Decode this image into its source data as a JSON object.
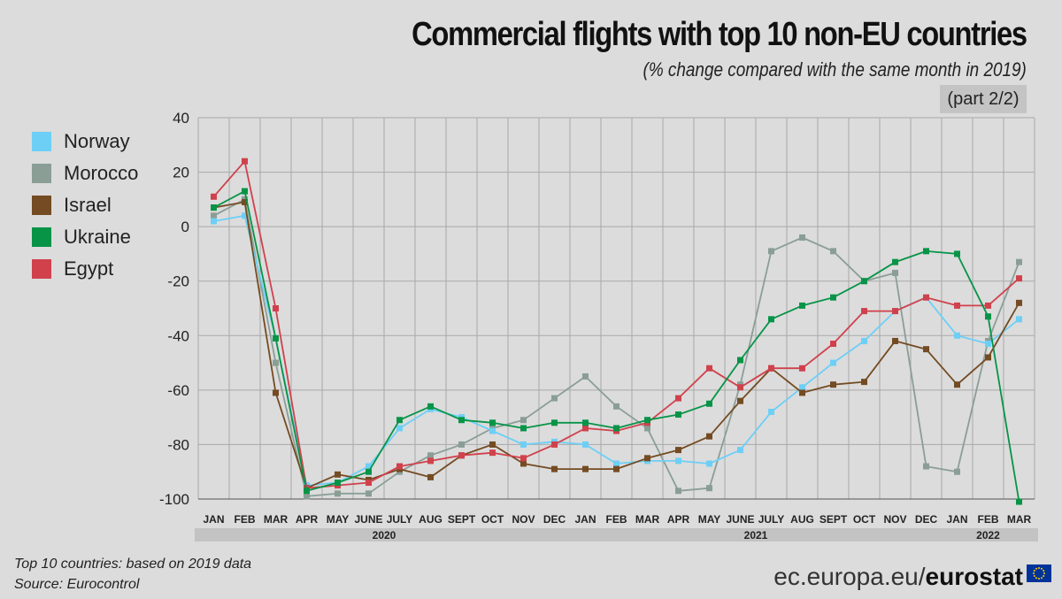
{
  "header": {
    "title": "Commercial flights with top 10 non-EU countries",
    "subtitle": "(% change compared with the same month in 2019)",
    "part": "(part 2/2)"
  },
  "footer": {
    "note": "Top 10 countries: based on 2019 data",
    "source": "Source: Eurocontrol",
    "brand_prefix": "ec.europa.eu/",
    "brand_bold": "eurostat",
    "flag_icon": "eu-flag-icon"
  },
  "chart_data": {
    "type": "line",
    "x": [
      "JAN",
      "FEB",
      "MAR",
      "APR",
      "MAY",
      "JUNE",
      "JULY",
      "AUG",
      "SEPT",
      "OCT",
      "NOV",
      "DEC",
      "JAN",
      "FEB",
      "MAR",
      "APR",
      "MAY",
      "JUNE",
      "JULY",
      "AUG",
      "SEPT",
      "OCT",
      "NOV",
      "DEC",
      "JAN",
      "FEB",
      "MAR"
    ],
    "years": [
      {
        "label": "2020",
        "start": 0,
        "end": 11
      },
      {
        "label": "2021",
        "start": 12,
        "end": 23
      },
      {
        "label": "2022",
        "start": 24,
        "end": 26
      }
    ],
    "ylim": [
      -100,
      40
    ],
    "yticks": [
      40,
      20,
      0,
      -20,
      -40,
      -60,
      -80,
      -100
    ],
    "grid": true,
    "legend_position": "left",
    "series": [
      {
        "name": "Morocco",
        "color": "#8a9e96",
        "values": [
          4,
          10,
          -50,
          -99,
          -98,
          -98,
          -90,
          -84,
          -80,
          -74,
          -71,
          -63,
          -55,
          -66,
          -74,
          -97,
          -96,
          -58,
          -9,
          -4,
          -9,
          -20,
          -17,
          -88,
          -90,
          -42,
          -13
        ]
      },
      {
        "name": "Norway",
        "color": "#6dcff6",
        "values": [
          2,
          4,
          -41,
          -95,
          -94,
          -88,
          -74,
          -67,
          -70,
          -75,
          -80,
          -79,
          -80,
          -87,
          -86,
          -86,
          -87,
          -82,
          -68,
          -59,
          -50,
          -42,
          -31,
          -26,
          -40,
          -43,
          -34
        ]
      },
      {
        "name": "Israel",
        "color": "#744b22",
        "values": [
          7,
          9,
          -61,
          -96,
          -91,
          -93,
          -89,
          -92,
          -84,
          -80,
          -87,
          -89,
          -89,
          -89,
          -85,
          -82,
          -77,
          -64,
          -52,
          -61,
          -58,
          -57,
          -42,
          -45,
          -58,
          -48,
          -28
        ]
      },
      {
        "name": "Egypt",
        "color": "#d0414c",
        "values": [
          11,
          24,
          -30,
          -96,
          -95,
          -94,
          -88,
          -86,
          -84,
          -83,
          -85,
          -80,
          -74,
          -75,
          -72,
          -63,
          -52,
          -59,
          -52,
          -52,
          -43,
          -31,
          -31,
          -26,
          -29,
          -29,
          -19
        ]
      },
      {
        "name": "Ukraine",
        "color": "#079447",
        "values": [
          7,
          13,
          -41,
          -97,
          -94,
          -90,
          -71,
          -66,
          -71,
          -72,
          -74,
          -72,
          -72,
          -74,
          -71,
          -69,
          -65,
          -49,
          -34,
          -29,
          -26,
          -20,
          -13,
          -9,
          -10,
          -33,
          -101
        ]
      }
    ],
    "legend_order": [
      "Norway",
      "Morocco",
      "Israel",
      "Ukraine",
      "Egypt"
    ]
  }
}
